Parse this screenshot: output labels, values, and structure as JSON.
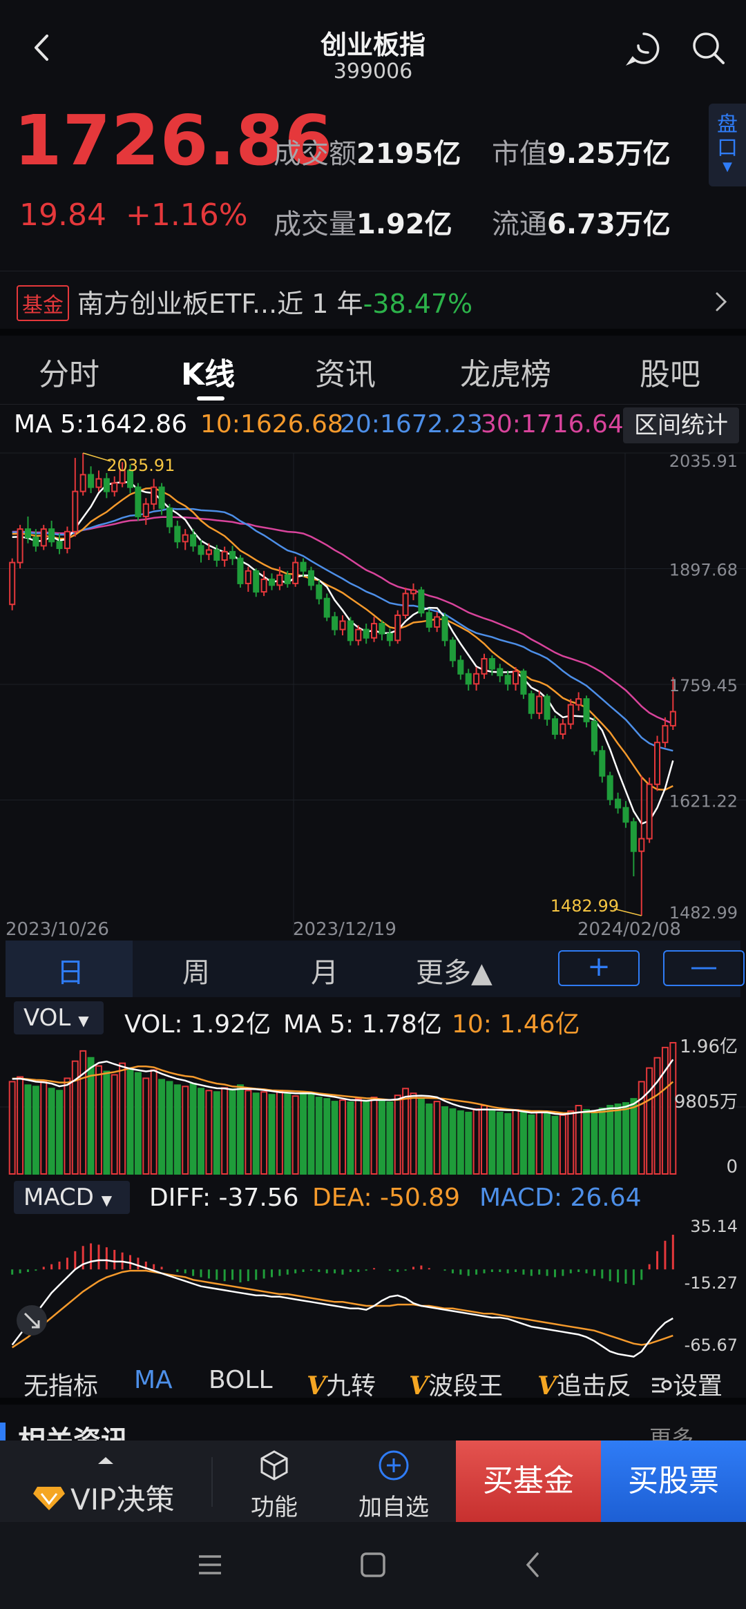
{
  "header": {
    "title": "创业板指",
    "code": "399006"
  },
  "quote": {
    "price": "1726.86",
    "change": "19.84",
    "change_pct": "+1.16%",
    "turnover_label": "成交额",
    "turnover_value": "2195亿",
    "volume_label": "成交量",
    "volume_value": "1.92亿",
    "mktcap_label": "市值",
    "mktcap_value": "9.25万亿",
    "float_label": "流通",
    "float_value": "6.73万亿",
    "pankou_label": "盘口"
  },
  "fund": {
    "tag": "基金",
    "text": "南方创业板ETF...近 1 年",
    "return": "-38.47%"
  },
  "tabs": [
    "分时",
    "K线",
    "资讯",
    "龙虎榜",
    "股吧"
  ],
  "ma": {
    "ma5": "MA 5:1642.86",
    "ma10": "10:1626.68",
    "ma20": "20:1672.23",
    "ma30": "30:1716.64",
    "range_button": "区间统计"
  },
  "kchart": {
    "price_ticks": [
      "2035.91",
      "1897.68",
      "1759.45",
      "1621.22",
      "1482.99"
    ],
    "dates": [
      "2023/10/26",
      "2023/12/19",
      "2024/02/08"
    ],
    "high_label": "2035.91",
    "low_label": "1482.99"
  },
  "periods": {
    "day": "日",
    "week": "周",
    "month": "月",
    "more": "更多▲",
    "plus": "+",
    "minus": "—"
  },
  "vol": {
    "selector": "VOL",
    "vol": "VOL: 1.92亿",
    "ma5": "MA 5: 1.78亿",
    "ma10": "10: 1.46亿",
    "ticks": [
      "1.96亿",
      "9805万",
      "0"
    ]
  },
  "macd": {
    "selector": "MACD",
    "diff": "DIFF: -37.56",
    "dea": "DEA: -50.89",
    "macd": "MACD: 26.64",
    "ticks": [
      "35.14",
      "-15.27",
      "-65.67"
    ]
  },
  "indicators": [
    "无指标",
    "MA",
    "BOLL",
    "九转",
    "波段王",
    "追击反",
    "设置"
  ],
  "indicator_prefix": "V",
  "behind_text": "相关资讯",
  "behind_more": "更多",
  "bottom": {
    "vip": "VIP决策",
    "func": "功能",
    "add": "加自选",
    "buy_fund": "买基金",
    "buy_stock": "买股票"
  },
  "colors": {
    "up": "#e5383b",
    "down": "#1f9c3a",
    "ma5": "#ffffff",
    "ma10": "#f59a2c",
    "ma20": "#4d8fe8",
    "ma30": "#d9449c",
    "accent": "#2f7cf6"
  },
  "chart_data": {
    "type": "candlestick",
    "title": "",
    "x_ticks": [
      "2023/10/26",
      "2023/12/19",
      "2024/02/08"
    ],
    "ylim": [
      1482.99,
      2035.91
    ],
    "annotations": [
      {
        "label": "2035.91",
        "kind": "high"
      },
      {
        "label": "1482.99",
        "kind": "low"
      }
    ],
    "candles": [
      {
        "o": 1855,
        "c": 1905,
        "h": 1910,
        "l": 1848
      },
      {
        "o": 1905,
        "c": 1945,
        "h": 1950,
        "l": 1898
      },
      {
        "o": 1945,
        "c": 1935,
        "h": 1960,
        "l": 1928
      },
      {
        "o": 1935,
        "c": 1925,
        "h": 1945,
        "l": 1918
      },
      {
        "o": 1925,
        "c": 1945,
        "h": 1950,
        "l": 1920
      },
      {
        "o": 1945,
        "c": 1930,
        "h": 1955,
        "l": 1924
      },
      {
        "o": 1930,
        "c": 1922,
        "h": 1940,
        "l": 1915
      },
      {
        "o": 1922,
        "c": 1942,
        "h": 1948,
        "l": 1916
      },
      {
        "o": 1942,
        "c": 1990,
        "h": 2030,
        "l": 1936
      },
      {
        "o": 1990,
        "c": 2010,
        "h": 2035.91,
        "l": 1985
      },
      {
        "o": 2010,
        "c": 1995,
        "h": 2020,
        "l": 1988
      },
      {
        "o": 1995,
        "c": 2005,
        "h": 2015,
        "l": 1990
      },
      {
        "o": 2005,
        "c": 1990,
        "h": 2012,
        "l": 1982
      },
      {
        "o": 1990,
        "c": 2000,
        "h": 2008,
        "l": 1984
      },
      {
        "o": 2000,
        "c": 2015,
        "h": 2025,
        "l": 1995
      },
      {
        "o": 2015,
        "c": 1995,
        "h": 2022,
        "l": 1988
      },
      {
        "o": 1995,
        "c": 1960,
        "h": 2000,
        "l": 1955
      },
      {
        "o": 1960,
        "c": 1975,
        "h": 1982,
        "l": 1950
      },
      {
        "o": 1975,
        "c": 1995,
        "h": 2005,
        "l": 1968
      },
      {
        "o": 1995,
        "c": 1970,
        "h": 2000,
        "l": 1962
      },
      {
        "o": 1970,
        "c": 1948,
        "h": 1975,
        "l": 1940
      },
      {
        "o": 1948,
        "c": 1930,
        "h": 1955,
        "l": 1922
      },
      {
        "o": 1930,
        "c": 1938,
        "h": 1945,
        "l": 1920
      },
      {
        "o": 1938,
        "c": 1925,
        "h": 1945,
        "l": 1918
      },
      {
        "o": 1925,
        "c": 1915,
        "h": 1932,
        "l": 1905
      },
      {
        "o": 1915,
        "c": 1920,
        "h": 1928,
        "l": 1908
      },
      {
        "o": 1920,
        "c": 1908,
        "h": 1926,
        "l": 1900
      },
      {
        "o": 1908,
        "c": 1918,
        "h": 1924,
        "l": 1900
      },
      {
        "o": 1918,
        "c": 1910,
        "h": 1925,
        "l": 1902
      },
      {
        "o": 1910,
        "c": 1880,
        "h": 1914,
        "l": 1875
      },
      {
        "o": 1880,
        "c": 1895,
        "h": 1900,
        "l": 1870
      },
      {
        "o": 1895,
        "c": 1870,
        "h": 1898,
        "l": 1864
      },
      {
        "o": 1870,
        "c": 1885,
        "h": 1895,
        "l": 1865
      },
      {
        "o": 1885,
        "c": 1878,
        "h": 1892,
        "l": 1872
      },
      {
        "o": 1878,
        "c": 1890,
        "h": 1900,
        "l": 1872
      },
      {
        "o": 1890,
        "c": 1880,
        "h": 1895,
        "l": 1875
      },
      {
        "o": 1880,
        "c": 1905,
        "h": 1912,
        "l": 1876
      },
      {
        "o": 1905,
        "c": 1895,
        "h": 1910,
        "l": 1888
      },
      {
        "o": 1895,
        "c": 1878,
        "h": 1900,
        "l": 1872
      },
      {
        "o": 1878,
        "c": 1862,
        "h": 1884,
        "l": 1855
      },
      {
        "o": 1862,
        "c": 1840,
        "h": 1868,
        "l": 1835
      },
      {
        "o": 1840,
        "c": 1825,
        "h": 1846,
        "l": 1818
      },
      {
        "o": 1825,
        "c": 1835,
        "h": 1842,
        "l": 1818
      },
      {
        "o": 1835,
        "c": 1812,
        "h": 1840,
        "l": 1806
      },
      {
        "o": 1812,
        "c": 1825,
        "h": 1830,
        "l": 1806
      },
      {
        "o": 1825,
        "c": 1815,
        "h": 1832,
        "l": 1808
      },
      {
        "o": 1815,
        "c": 1832,
        "h": 1840,
        "l": 1810
      },
      {
        "o": 1832,
        "c": 1820,
        "h": 1836,
        "l": 1812
      },
      {
        "o": 1820,
        "c": 1812,
        "h": 1826,
        "l": 1805
      },
      {
        "o": 1812,
        "c": 1842,
        "h": 1848,
        "l": 1808
      },
      {
        "o": 1842,
        "c": 1868,
        "h": 1875,
        "l": 1838
      },
      {
        "o": 1868,
        "c": 1872,
        "h": 1880,
        "l": 1860
      },
      {
        "o": 1872,
        "c": 1845,
        "h": 1876,
        "l": 1840
      },
      {
        "o": 1845,
        "c": 1828,
        "h": 1850,
        "l": 1822
      },
      {
        "o": 1828,
        "c": 1840,
        "h": 1846,
        "l": 1822
      },
      {
        "o": 1840,
        "c": 1812,
        "h": 1845,
        "l": 1805
      },
      {
        "o": 1812,
        "c": 1788,
        "h": 1816,
        "l": 1780
      },
      {
        "o": 1788,
        "c": 1772,
        "h": 1794,
        "l": 1765
      },
      {
        "o": 1772,
        "c": 1760,
        "h": 1778,
        "l": 1752
      },
      {
        "o": 1760,
        "c": 1772,
        "h": 1780,
        "l": 1752
      },
      {
        "o": 1772,
        "c": 1790,
        "h": 1796,
        "l": 1766
      },
      {
        "o": 1790,
        "c": 1778,
        "h": 1794,
        "l": 1770
      },
      {
        "o": 1778,
        "c": 1770,
        "h": 1784,
        "l": 1762
      },
      {
        "o": 1770,
        "c": 1760,
        "h": 1776,
        "l": 1752
      },
      {
        "o": 1760,
        "c": 1775,
        "h": 1780,
        "l": 1752
      },
      {
        "o": 1775,
        "c": 1748,
        "h": 1778,
        "l": 1742
      },
      {
        "o": 1748,
        "c": 1725,
        "h": 1752,
        "l": 1718
      },
      {
        "o": 1725,
        "c": 1745,
        "h": 1752,
        "l": 1718
      },
      {
        "o": 1745,
        "c": 1718,
        "h": 1748,
        "l": 1710
      },
      {
        "o": 1718,
        "c": 1700,
        "h": 1722,
        "l": 1694
      },
      {
        "o": 1700,
        "c": 1712,
        "h": 1718,
        "l": 1694
      },
      {
        "o": 1712,
        "c": 1735,
        "h": 1742,
        "l": 1706
      },
      {
        "o": 1735,
        "c": 1742,
        "h": 1750,
        "l": 1728
      },
      {
        "o": 1742,
        "c": 1715,
        "h": 1746,
        "l": 1708
      },
      {
        "o": 1715,
        "c": 1680,
        "h": 1720,
        "l": 1675
      },
      {
        "o": 1680,
        "c": 1650,
        "h": 1686,
        "l": 1642
      },
      {
        "o": 1650,
        "c": 1622,
        "h": 1655,
        "l": 1615
      },
      {
        "o": 1622,
        "c": 1612,
        "h": 1630,
        "l": 1605
      },
      {
        "o": 1612,
        "c": 1595,
        "h": 1620,
        "l": 1588
      },
      {
        "o": 1595,
        "c": 1560,
        "h": 1600,
        "l": 1530
      },
      {
        "o": 1560,
        "c": 1575,
        "h": 1650,
        "l": 1482.99
      },
      {
        "o": 1575,
        "c": 1640,
        "h": 1648,
        "l": 1570
      },
      {
        "o": 1640,
        "c": 1690,
        "h": 1698,
        "l": 1632
      },
      {
        "o": 1690,
        "c": 1710,
        "h": 1720,
        "l": 1684
      },
      {
        "o": 1710,
        "c": 1726.86,
        "h": 1768,
        "l": 1705
      }
    ],
    "volume": [
      1.35,
      1.42,
      1.3,
      1.28,
      1.36,
      1.25,
      1.22,
      1.4,
      1.65,
      1.8,
      1.7,
      1.58,
      1.5,
      1.45,
      1.62,
      1.55,
      1.48,
      1.4,
      1.52,
      1.38,
      1.35,
      1.3,
      1.28,
      1.32,
      1.25,
      1.22,
      1.2,
      1.26,
      1.24,
      1.3,
      1.22,
      1.18,
      1.2,
      1.16,
      1.22,
      1.18,
      1.14,
      1.2,
      1.16,
      1.12,
      1.1,
      1.06,
      1.08,
      1.05,
      1.1,
      1.06,
      1.12,
      1.08,
      1.05,
      1.15,
      1.25,
      1.18,
      1.1,
      1.02,
      1.06,
      0.98,
      0.95,
      0.92,
      0.9,
      0.95,
      1.0,
      0.94,
      0.9,
      0.88,
      0.94,
      0.9,
      0.86,
      0.92,
      0.88,
      0.84,
      0.86,
      0.92,
      1.0,
      0.94,
      0.9,
      0.96,
      1.0,
      1.02,
      1.04,
      1.1,
      1.35,
      1.55,
      1.7,
      1.85,
      1.92
    ],
    "macd_hist": [
      -4,
      -3,
      -2,
      -1,
      2,
      4,
      6,
      9,
      14,
      18,
      20,
      19,
      17,
      15,
      13,
      11,
      9,
      6,
      4,
      2,
      0,
      -2,
      -3,
      -5,
      -6,
      -7,
      -8,
      -9,
      -8,
      -10,
      -9,
      -8,
      -7,
      -6,
      -5,
      -4,
      -3,
      -2,
      -1,
      -2,
      -3,
      -3,
      -4,
      -2,
      -2,
      -1,
      1,
      0,
      -1,
      -2,
      -1,
      2,
      3,
      1,
      0,
      -1,
      -3,
      -4,
      -5,
      -4,
      -3,
      -2,
      -2,
      -3,
      -2,
      -4,
      -5,
      -4,
      -5,
      -6,
      -5,
      -3,
      -2,
      -3,
      -5,
      -7,
      -9,
      -10,
      -11,
      -12,
      -8,
      4,
      14,
      22,
      26.64
    ],
    "diff": [
      -58,
      -50,
      -42,
      -34,
      -26,
      -18,
      -12,
      -6,
      0,
      4,
      6,
      7,
      7,
      6,
      6,
      5,
      3,
      1,
      -1,
      -3,
      -5,
      -7,
      -9,
      -11,
      -13,
      -14,
      -15,
      -16,
      -17,
      -18,
      -19,
      -20,
      -20,
      -21,
      -21,
      -22,
      -23,
      -24,
      -25,
      -26,
      -27,
      -28,
      -29,
      -30,
      -30,
      -31,
      -28,
      -24,
      -21,
      -20,
      -22,
      -26,
      -28,
      -29,
      -30,
      -31,
      -32,
      -33,
      -34,
      -35,
      -36,
      -37,
      -37,
      -38,
      -40,
      -42,
      -44,
      -45,
      -46,
      -47,
      -48,
      -49,
      -50,
      -52,
      -55,
      -59,
      -63,
      -65,
      -66,
      -67,
      -63,
      -55,
      -47,
      -41,
      -37.56
    ],
    "dea": [
      -60,
      -56,
      -52,
      -47,
      -42,
      -37,
      -32,
      -27,
      -22,
      -17,
      -13,
      -9,
      -6,
      -4,
      -2,
      -1,
      -1,
      -1,
      -2,
      -3,
      -4,
      -5,
      -6,
      -8,
      -9,
      -10,
      -11,
      -12,
      -13,
      -14,
      -15,
      -16,
      -17,
      -18,
      -19,
      -19,
      -20,
      -21,
      -22,
      -23,
      -24,
      -25,
      -25,
      -26,
      -27,
      -28,
      -28,
      -28,
      -28,
      -27,
      -27,
      -27,
      -28,
      -28,
      -29,
      -30,
      -30,
      -31,
      -32,
      -33,
      -34,
      -34,
      -35,
      -36,
      -37,
      -38,
      -39,
      -40,
      -41,
      -42,
      -43,
      -44,
      -45,
      -46,
      -47,
      -49,
      -51,
      -53,
      -55,
      -57,
      -58,
      -57,
      -55,
      -53,
      -50.89
    ]
  }
}
